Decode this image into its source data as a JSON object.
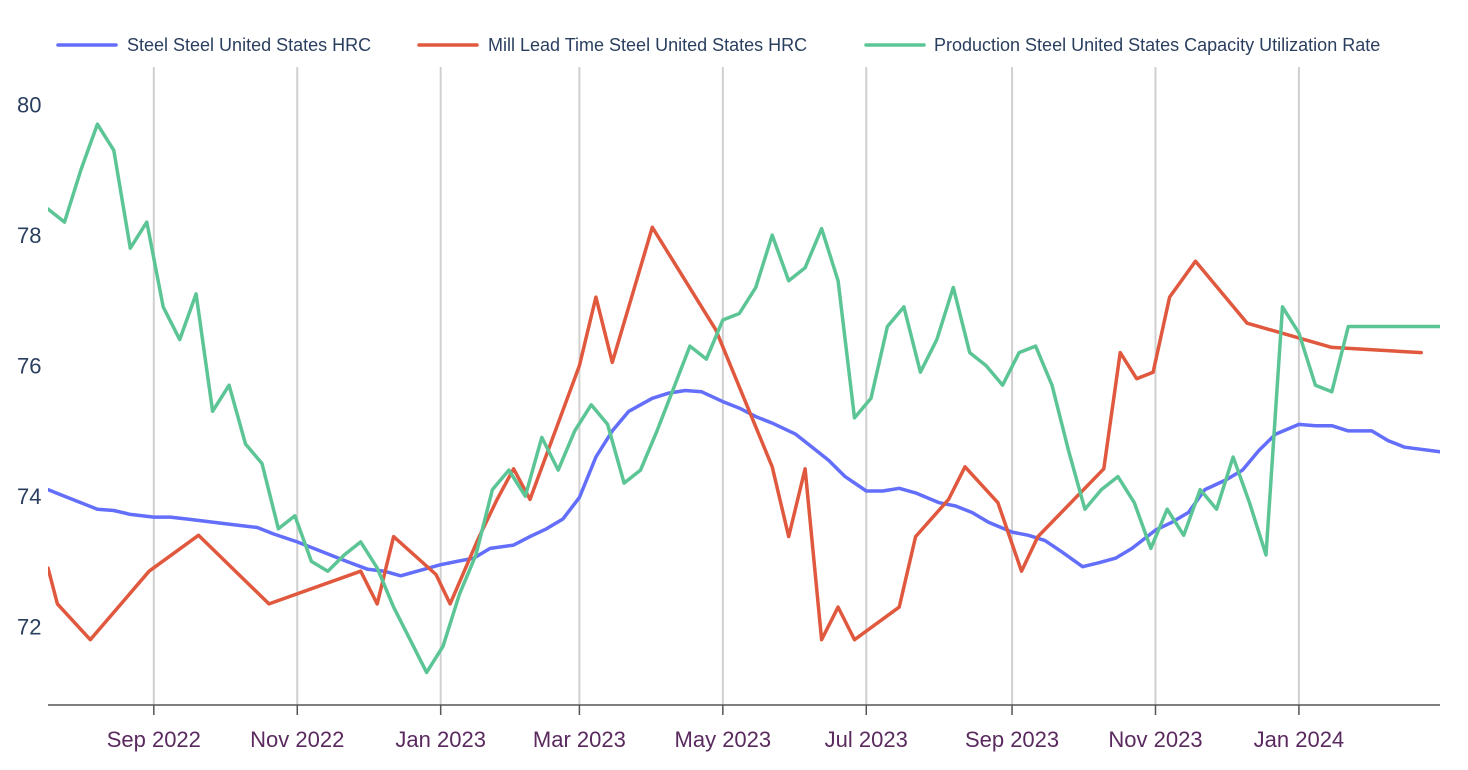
{
  "chart_data": {
    "type": "line",
    "title": "",
    "xlabel": "",
    "ylabel": "",
    "ylim": [
      70.8,
      80.5
    ],
    "x_range": [
      "2022-07-18",
      "2024-03-01"
    ],
    "yticks": [
      72,
      74,
      76,
      78,
      80
    ],
    "xticks": [
      {
        "label": "Sep 2022",
        "date": "2022-09-01"
      },
      {
        "label": "Nov 2022",
        "date": "2022-11-01"
      },
      {
        "label": "Jan 2023",
        "date": "2023-01-01"
      },
      {
        "label": "Mar 2023",
        "date": "2023-03-01"
      },
      {
        "label": "May 2023",
        "date": "2023-05-01"
      },
      {
        "label": "Jul 2023",
        "date": "2023-07-01"
      },
      {
        "label": "Sep 2023",
        "date": "2023-09-01"
      },
      {
        "label": "Nov 2023",
        "date": "2023-11-01"
      },
      {
        "label": "Jan 2024",
        "date": "2024-01-01"
      }
    ],
    "legend_position": "top",
    "series": [
      {
        "name": "Steel Steel United States HRC",
        "color": "#636efa",
        "points": [
          [
            "2022-07-18",
            74.1
          ],
          [
            "2022-07-25",
            74.0
          ],
          [
            "2022-08-08",
            73.8
          ],
          [
            "2022-08-15",
            73.78
          ],
          [
            "2022-08-22",
            73.72
          ],
          [
            "2022-09-01",
            73.68
          ],
          [
            "2022-09-08",
            73.68
          ],
          [
            "2022-09-15",
            73.65
          ],
          [
            "2022-09-22",
            73.62
          ],
          [
            "2022-10-01",
            73.58
          ],
          [
            "2022-10-15",
            73.52
          ],
          [
            "2022-10-22",
            73.42
          ],
          [
            "2022-11-01",
            73.3
          ],
          [
            "2022-11-08",
            73.2
          ],
          [
            "2022-11-15",
            73.1
          ],
          [
            "2022-11-22",
            73.0
          ],
          [
            "2022-12-01",
            72.88
          ],
          [
            "2022-12-08",
            72.85
          ],
          [
            "2022-12-15",
            72.78
          ],
          [
            "2022-12-22",
            72.85
          ],
          [
            "2023-01-01",
            72.95
          ],
          [
            "2023-01-08",
            73.0
          ],
          [
            "2023-01-15",
            73.05
          ],
          [
            "2023-01-22",
            73.2
          ],
          [
            "2023-02-01",
            73.25
          ],
          [
            "2023-02-08",
            73.38
          ],
          [
            "2023-02-15",
            73.5
          ],
          [
            "2023-02-22",
            73.65
          ],
          [
            "2023-03-01",
            73.98
          ],
          [
            "2023-03-08",
            74.6
          ],
          [
            "2023-03-15",
            75.0
          ],
          [
            "2023-03-22",
            75.3
          ],
          [
            "2023-04-01",
            75.5
          ],
          [
            "2023-04-08",
            75.58
          ],
          [
            "2023-04-15",
            75.62
          ],
          [
            "2023-04-22",
            75.6
          ],
          [
            "2023-05-01",
            75.45
          ],
          [
            "2023-05-08",
            75.35
          ],
          [
            "2023-05-15",
            75.22
          ],
          [
            "2023-05-22",
            75.12
          ],
          [
            "2023-06-01",
            74.95
          ],
          [
            "2023-06-08",
            74.75
          ],
          [
            "2023-06-15",
            74.55
          ],
          [
            "2023-06-22",
            74.3
          ],
          [
            "2023-07-01",
            74.08
          ],
          [
            "2023-07-08",
            74.08
          ],
          [
            "2023-07-15",
            74.12
          ],
          [
            "2023-07-22",
            74.05
          ],
          [
            "2023-08-01",
            73.9
          ],
          [
            "2023-08-08",
            73.85
          ],
          [
            "2023-08-15",
            73.75
          ],
          [
            "2023-08-22",
            73.6
          ],
          [
            "2023-09-01",
            73.45
          ],
          [
            "2023-09-08",
            73.4
          ],
          [
            "2023-09-15",
            73.32
          ],
          [
            "2023-09-22",
            73.15
          ],
          [
            "2023-10-01",
            72.92
          ],
          [
            "2023-10-08",
            72.98
          ],
          [
            "2023-10-15",
            73.05
          ],
          [
            "2023-10-22",
            73.2
          ],
          [
            "2023-11-01",
            73.48
          ],
          [
            "2023-11-08",
            73.6
          ],
          [
            "2023-11-15",
            73.75
          ],
          [
            "2023-11-22",
            74.1
          ],
          [
            "2023-12-01",
            74.25
          ],
          [
            "2023-12-08",
            74.4
          ],
          [
            "2023-12-15",
            74.7
          ],
          [
            "2023-12-22",
            74.95
          ],
          [
            "2024-01-01",
            75.1
          ],
          [
            "2024-01-08",
            75.08
          ],
          [
            "2024-01-15",
            75.08
          ],
          [
            "2024-01-22",
            75.0
          ],
          [
            "2024-02-01",
            75.0
          ],
          [
            "2024-02-08",
            74.85
          ],
          [
            "2024-02-15",
            74.75
          ],
          [
            "2024-03-01",
            74.68
          ]
        ]
      },
      {
        "name": "Mill Lead Time Steel United States HRC",
        "color": "#e0583e",
        "points": [
          [
            "2022-07-18",
            72.9
          ],
          [
            "2022-07-22",
            72.35
          ],
          [
            "2022-08-05",
            71.8
          ],
          [
            "2022-08-30",
            72.85
          ],
          [
            "2022-09-20",
            73.4
          ],
          [
            "2022-10-20",
            72.35
          ],
          [
            "2022-11-28",
            72.85
          ],
          [
            "2022-12-05",
            72.35
          ],
          [
            "2022-12-12",
            73.38
          ],
          [
            "2022-12-30",
            72.8
          ],
          [
            "2023-01-05",
            72.35
          ],
          [
            "2023-01-17",
            73.35
          ],
          [
            "2023-01-25",
            73.95
          ],
          [
            "2023-02-01",
            74.42
          ],
          [
            "2023-02-08",
            73.95
          ],
          [
            "2023-03-01",
            76.0
          ],
          [
            "2023-03-08",
            77.05
          ],
          [
            "2023-03-15",
            76.05
          ],
          [
            "2023-04-01",
            78.12
          ],
          [
            "2023-04-28",
            76.55
          ],
          [
            "2023-05-22",
            74.45
          ],
          [
            "2023-05-29",
            73.38
          ],
          [
            "2023-06-05",
            74.42
          ],
          [
            "2023-06-12",
            71.8
          ],
          [
            "2023-06-19",
            72.3
          ],
          [
            "2023-06-26",
            71.8
          ],
          [
            "2023-07-15",
            72.3
          ],
          [
            "2023-07-22",
            73.38
          ],
          [
            "2023-08-05",
            73.95
          ],
          [
            "2023-08-12",
            74.45
          ],
          [
            "2023-08-26",
            73.9
          ],
          [
            "2023-09-05",
            72.85
          ],
          [
            "2023-09-12",
            73.38
          ],
          [
            "2023-10-10",
            74.42
          ],
          [
            "2023-10-17",
            76.2
          ],
          [
            "2023-10-24",
            75.8
          ],
          [
            "2023-10-31",
            75.9
          ],
          [
            "2023-11-07",
            77.05
          ],
          [
            "2023-11-18",
            77.6
          ],
          [
            "2023-12-10",
            76.65
          ],
          [
            "2024-01-15",
            76.28
          ],
          [
            "2024-02-22",
            76.2
          ]
        ]
      },
      {
        "name": "Production Steel United States Capacity Utilization Rate",
        "color": "#5cc596",
        "points": [
          [
            "2022-07-18",
            78.4
          ],
          [
            "2022-07-25",
            78.2
          ],
          [
            "2022-08-01",
            79.0
          ],
          [
            "2022-08-08",
            79.7
          ],
          [
            "2022-08-15",
            79.3
          ],
          [
            "2022-08-22",
            77.8
          ],
          [
            "2022-08-29",
            78.2
          ],
          [
            "2022-09-05",
            76.9
          ],
          [
            "2022-09-12",
            76.4
          ],
          [
            "2022-09-19",
            77.1
          ],
          [
            "2022-09-26",
            75.3
          ],
          [
            "2022-10-03",
            75.7
          ],
          [
            "2022-10-10",
            74.8
          ],
          [
            "2022-10-17",
            74.5
          ],
          [
            "2022-10-24",
            73.5
          ],
          [
            "2022-10-31",
            73.7
          ],
          [
            "2022-11-07",
            73.0
          ],
          [
            "2022-11-14",
            72.85
          ],
          [
            "2022-11-21",
            73.1
          ],
          [
            "2022-11-28",
            73.3
          ],
          [
            "2022-12-05",
            72.9
          ],
          [
            "2022-12-12",
            72.3
          ],
          [
            "2022-12-19",
            71.8
          ],
          [
            "2022-12-26",
            71.3
          ],
          [
            "2023-01-02",
            71.7
          ],
          [
            "2023-01-09",
            72.5
          ],
          [
            "2023-01-16",
            73.1
          ],
          [
            "2023-01-23",
            74.1
          ],
          [
            "2023-01-30",
            74.4
          ],
          [
            "2023-02-06",
            74.0
          ],
          [
            "2023-02-13",
            74.9
          ],
          [
            "2023-02-20",
            74.4
          ],
          [
            "2023-02-27",
            75.0
          ],
          [
            "2023-03-06",
            75.4
          ],
          [
            "2023-03-13",
            75.1
          ],
          [
            "2023-03-20",
            74.2
          ],
          [
            "2023-03-27",
            74.4
          ],
          [
            "2023-04-03",
            75.0
          ],
          [
            "2023-04-10",
            75.65
          ],
          [
            "2023-04-17",
            76.3
          ],
          [
            "2023-04-24",
            76.1
          ],
          [
            "2023-05-01",
            76.7
          ],
          [
            "2023-05-08",
            76.8
          ],
          [
            "2023-05-15",
            77.2
          ],
          [
            "2023-05-22",
            78.0
          ],
          [
            "2023-05-29",
            77.3
          ],
          [
            "2023-06-05",
            77.5
          ],
          [
            "2023-06-12",
            78.1
          ],
          [
            "2023-06-19",
            77.3
          ],
          [
            "2023-06-26",
            75.2
          ],
          [
            "2023-07-03",
            75.5
          ],
          [
            "2023-07-10",
            76.6
          ],
          [
            "2023-07-17",
            76.9
          ],
          [
            "2023-07-24",
            75.9
          ],
          [
            "2023-07-31",
            76.4
          ],
          [
            "2023-08-07",
            77.2
          ],
          [
            "2023-08-14",
            76.2
          ],
          [
            "2023-08-21",
            76.0
          ],
          [
            "2023-08-28",
            75.7
          ],
          [
            "2023-09-04",
            76.2
          ],
          [
            "2023-09-11",
            76.3
          ],
          [
            "2023-09-18",
            75.7
          ],
          [
            "2023-09-25",
            74.7
          ],
          [
            "2023-10-02",
            73.8
          ],
          [
            "2023-10-09",
            74.1
          ],
          [
            "2023-10-16",
            74.3
          ],
          [
            "2023-10-23",
            73.9
          ],
          [
            "2023-10-30",
            73.2
          ],
          [
            "2023-11-06",
            73.8
          ],
          [
            "2023-11-13",
            73.4
          ],
          [
            "2023-11-20",
            74.1
          ],
          [
            "2023-11-27",
            73.8
          ],
          [
            "2023-12-04",
            74.6
          ],
          [
            "2023-12-11",
            73.9
          ],
          [
            "2023-12-18",
            73.1
          ],
          [
            "2023-12-25",
            76.9
          ],
          [
            "2024-01-01",
            76.5
          ],
          [
            "2024-01-08",
            75.7
          ],
          [
            "2024-01-15",
            75.6
          ],
          [
            "2024-01-22",
            76.6
          ],
          [
            "2024-03-01",
            76.6
          ]
        ]
      }
    ]
  }
}
